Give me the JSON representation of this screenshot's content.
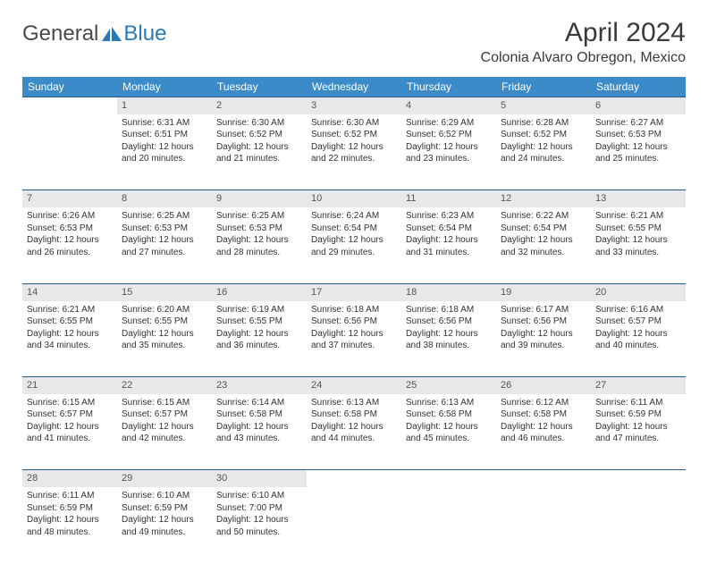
{
  "logo": {
    "text_general": "General",
    "text_blue": "Blue",
    "icon_color": "#2a7ab8"
  },
  "header": {
    "title": "April 2024",
    "location": "Colonia Alvaro Obregon, Mexico"
  },
  "colors": {
    "header_bg": "#3b8bc8",
    "header_text": "#ffffff",
    "daynum_bg": "#e7e8e9",
    "daynum_border": "#2a5a85",
    "body_text": "#333333"
  },
  "day_names": [
    "Sunday",
    "Monday",
    "Tuesday",
    "Wednesday",
    "Thursday",
    "Friday",
    "Saturday"
  ],
  "weeks": [
    {
      "nums": [
        "",
        "1",
        "2",
        "3",
        "4",
        "5",
        "6"
      ],
      "cells": [
        [],
        [
          "Sunrise: 6:31 AM",
          "Sunset: 6:51 PM",
          "Daylight: 12 hours",
          "and 20 minutes."
        ],
        [
          "Sunrise: 6:30 AM",
          "Sunset: 6:52 PM",
          "Daylight: 12 hours",
          "and 21 minutes."
        ],
        [
          "Sunrise: 6:30 AM",
          "Sunset: 6:52 PM",
          "Daylight: 12 hours",
          "and 22 minutes."
        ],
        [
          "Sunrise: 6:29 AM",
          "Sunset: 6:52 PM",
          "Daylight: 12 hours",
          "and 23 minutes."
        ],
        [
          "Sunrise: 6:28 AM",
          "Sunset: 6:52 PM",
          "Daylight: 12 hours",
          "and 24 minutes."
        ],
        [
          "Sunrise: 6:27 AM",
          "Sunset: 6:53 PM",
          "Daylight: 12 hours",
          "and 25 minutes."
        ]
      ]
    },
    {
      "nums": [
        "7",
        "8",
        "9",
        "10",
        "11",
        "12",
        "13"
      ],
      "cells": [
        [
          "Sunrise: 6:26 AM",
          "Sunset: 6:53 PM",
          "Daylight: 12 hours",
          "and 26 minutes."
        ],
        [
          "Sunrise: 6:25 AM",
          "Sunset: 6:53 PM",
          "Daylight: 12 hours",
          "and 27 minutes."
        ],
        [
          "Sunrise: 6:25 AM",
          "Sunset: 6:53 PM",
          "Daylight: 12 hours",
          "and 28 minutes."
        ],
        [
          "Sunrise: 6:24 AM",
          "Sunset: 6:54 PM",
          "Daylight: 12 hours",
          "and 29 minutes."
        ],
        [
          "Sunrise: 6:23 AM",
          "Sunset: 6:54 PM",
          "Daylight: 12 hours",
          "and 31 minutes."
        ],
        [
          "Sunrise: 6:22 AM",
          "Sunset: 6:54 PM",
          "Daylight: 12 hours",
          "and 32 minutes."
        ],
        [
          "Sunrise: 6:21 AM",
          "Sunset: 6:55 PM",
          "Daylight: 12 hours",
          "and 33 minutes."
        ]
      ]
    },
    {
      "nums": [
        "14",
        "15",
        "16",
        "17",
        "18",
        "19",
        "20"
      ],
      "cells": [
        [
          "Sunrise: 6:21 AM",
          "Sunset: 6:55 PM",
          "Daylight: 12 hours",
          "and 34 minutes."
        ],
        [
          "Sunrise: 6:20 AM",
          "Sunset: 6:55 PM",
          "Daylight: 12 hours",
          "and 35 minutes."
        ],
        [
          "Sunrise: 6:19 AM",
          "Sunset: 6:55 PM",
          "Daylight: 12 hours",
          "and 36 minutes."
        ],
        [
          "Sunrise: 6:18 AM",
          "Sunset: 6:56 PM",
          "Daylight: 12 hours",
          "and 37 minutes."
        ],
        [
          "Sunrise: 6:18 AM",
          "Sunset: 6:56 PM",
          "Daylight: 12 hours",
          "and 38 minutes."
        ],
        [
          "Sunrise: 6:17 AM",
          "Sunset: 6:56 PM",
          "Daylight: 12 hours",
          "and 39 minutes."
        ],
        [
          "Sunrise: 6:16 AM",
          "Sunset: 6:57 PM",
          "Daylight: 12 hours",
          "and 40 minutes."
        ]
      ]
    },
    {
      "nums": [
        "21",
        "22",
        "23",
        "24",
        "25",
        "26",
        "27"
      ],
      "cells": [
        [
          "Sunrise: 6:15 AM",
          "Sunset: 6:57 PM",
          "Daylight: 12 hours",
          "and 41 minutes."
        ],
        [
          "Sunrise: 6:15 AM",
          "Sunset: 6:57 PM",
          "Daylight: 12 hours",
          "and 42 minutes."
        ],
        [
          "Sunrise: 6:14 AM",
          "Sunset: 6:58 PM",
          "Daylight: 12 hours",
          "and 43 minutes."
        ],
        [
          "Sunrise: 6:13 AM",
          "Sunset: 6:58 PM",
          "Daylight: 12 hours",
          "and 44 minutes."
        ],
        [
          "Sunrise: 6:13 AM",
          "Sunset: 6:58 PM",
          "Daylight: 12 hours",
          "and 45 minutes."
        ],
        [
          "Sunrise: 6:12 AM",
          "Sunset: 6:58 PM",
          "Daylight: 12 hours",
          "and 46 minutes."
        ],
        [
          "Sunrise: 6:11 AM",
          "Sunset: 6:59 PM",
          "Daylight: 12 hours",
          "and 47 minutes."
        ]
      ]
    },
    {
      "nums": [
        "28",
        "29",
        "30",
        "",
        "",
        "",
        ""
      ],
      "cells": [
        [
          "Sunrise: 6:11 AM",
          "Sunset: 6:59 PM",
          "Daylight: 12 hours",
          "and 48 minutes."
        ],
        [
          "Sunrise: 6:10 AM",
          "Sunset: 6:59 PM",
          "Daylight: 12 hours",
          "and 49 minutes."
        ],
        [
          "Sunrise: 6:10 AM",
          "Sunset: 7:00 PM",
          "Daylight: 12 hours",
          "and 50 minutes."
        ],
        [],
        [],
        [],
        []
      ]
    }
  ]
}
